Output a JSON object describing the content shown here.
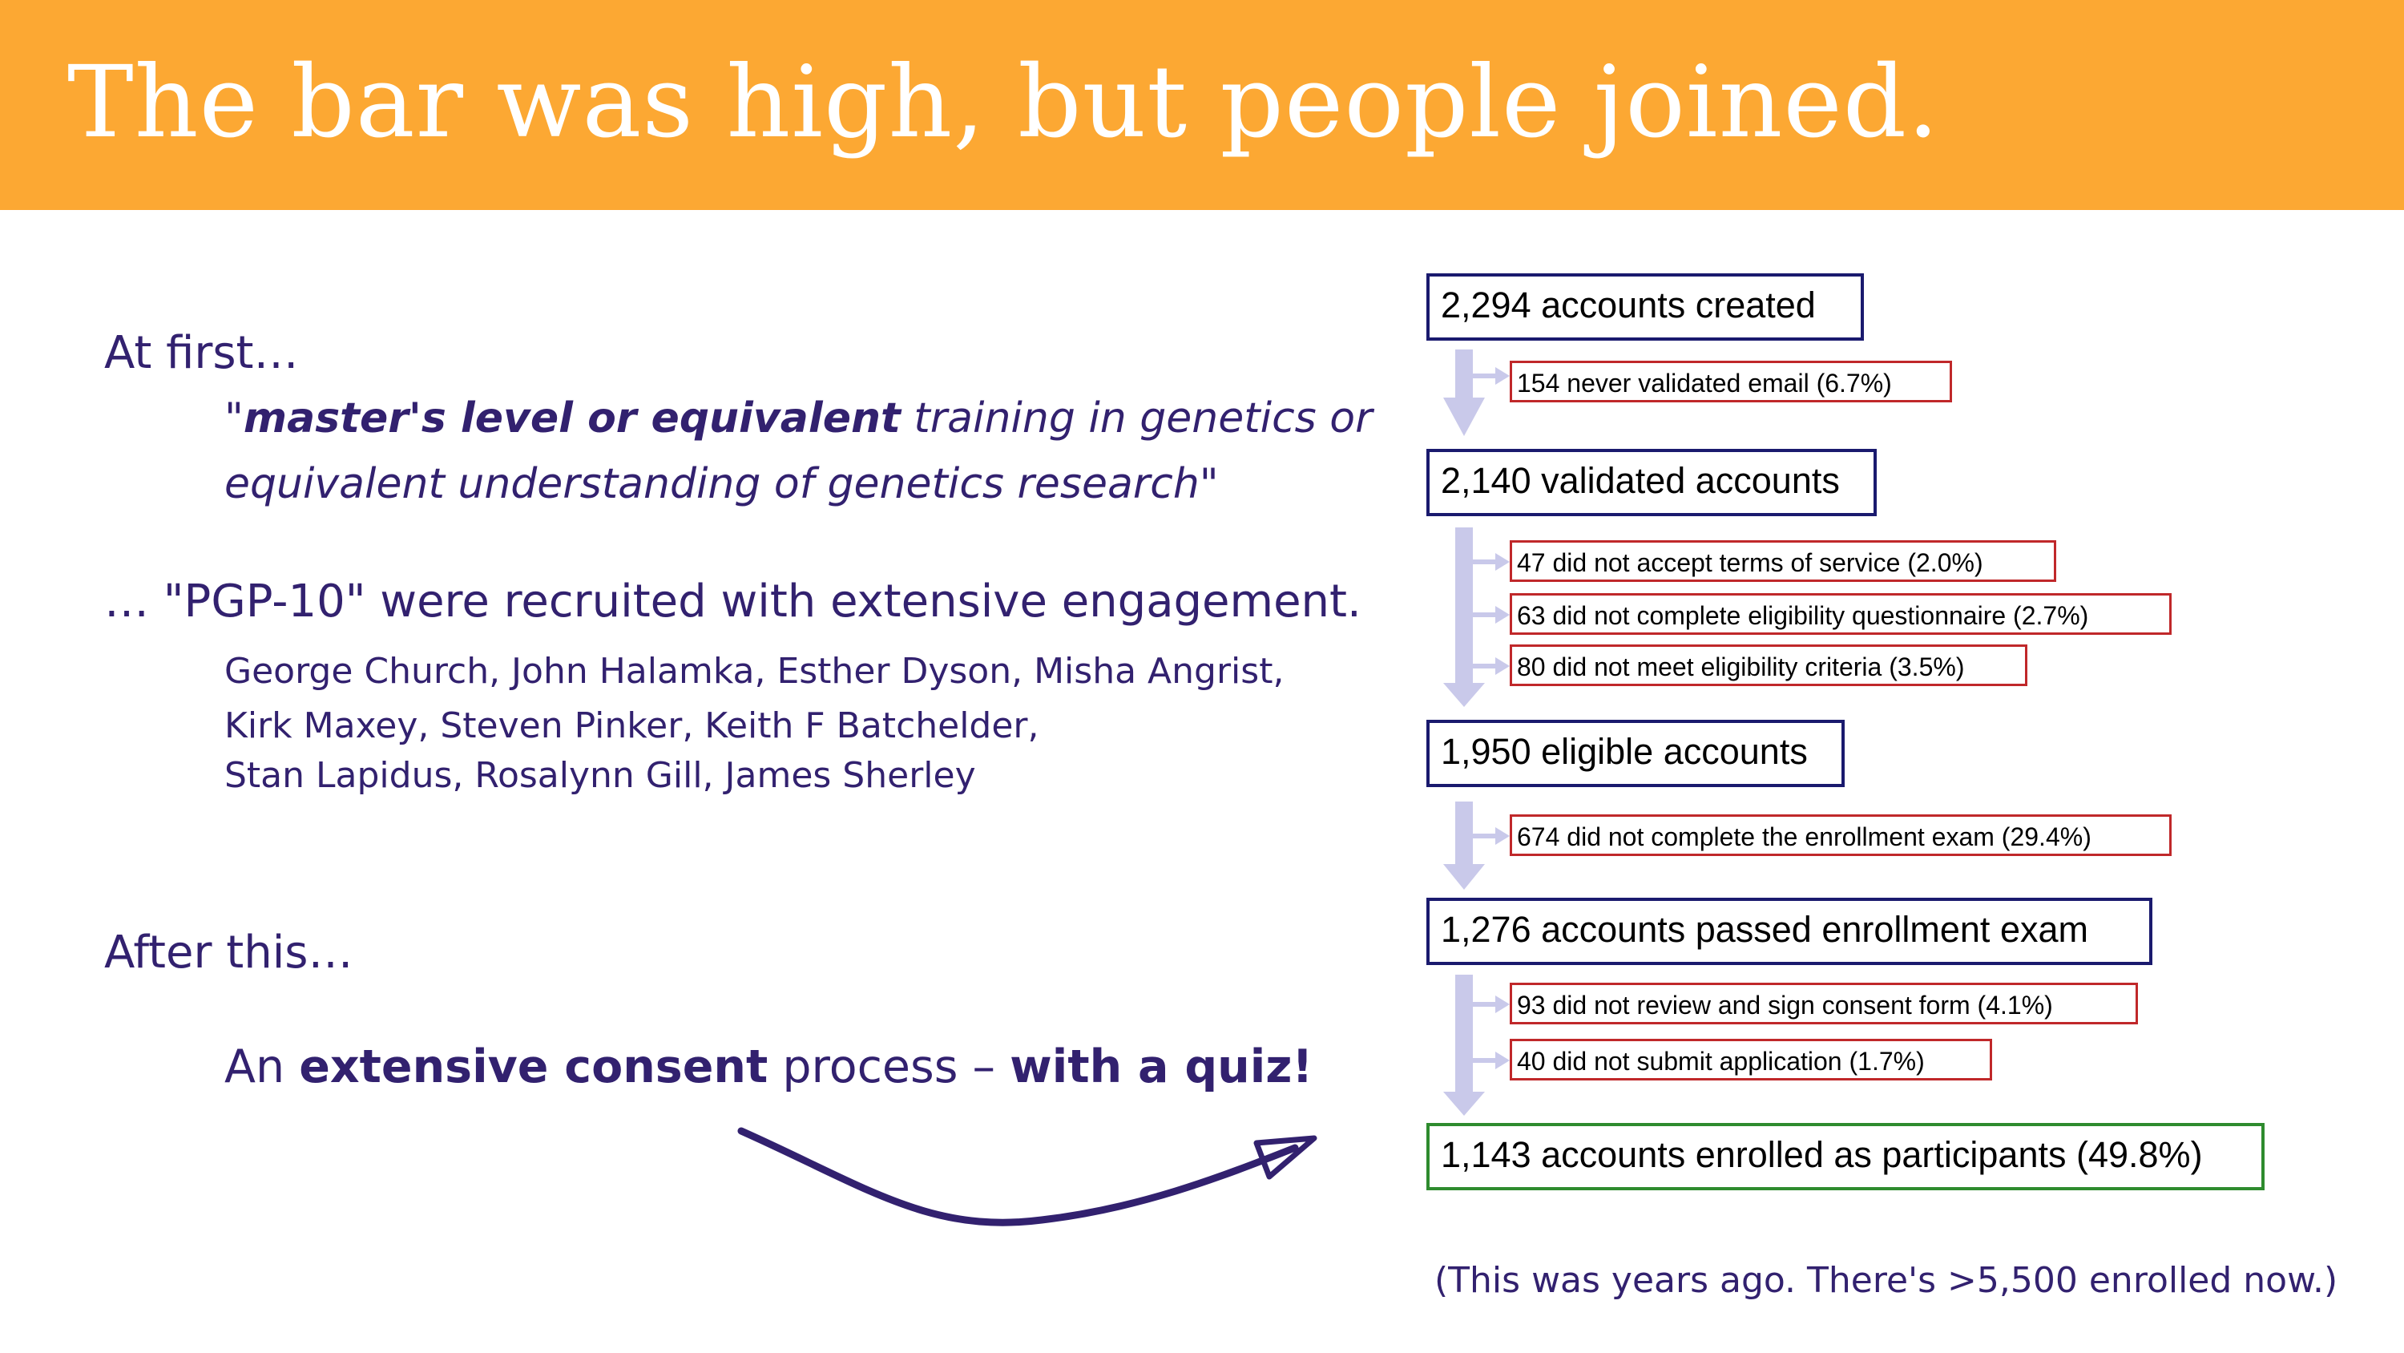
{
  "title": "The bar was high, but people joined.",
  "left": {
    "at_first": "At first…",
    "quote": {
      "open": "\"",
      "bold": "master's level or equivalent",
      "rest1": " training in genetics or",
      "line2": "equivalent understanding of genetics research\""
    },
    "pgp10": "… \"PGP-10\" were recruited with extensive engagement.",
    "names": [
      "George Church, John Halamka, Esther Dyson, Misha Angrist,",
      "Kirk Maxey, Steven Pinker, Keith F Batchelder,",
      "Stan Lapidus, Rosalynn Gill, James Sherley"
    ],
    "after_this": "After this…",
    "consent": {
      "p1": "An ",
      "b1": "extensive consent",
      "p2": " process – ",
      "b2": "with a quiz!"
    }
  },
  "flowchart": {
    "main": [
      "2,294 accounts created",
      "2,140 validated accounts",
      "1,950 eligible accounts",
      "1,276 accounts passed enrollment exam",
      "1,143 accounts enrolled as participants (49.8%)"
    ],
    "exclusions": [
      "154 never validated email (6.7%)",
      "47 did not accept terms of service (2.0%)",
      "63 did not complete eligibility questionnaire (2.7%)",
      "80 did not meet eligibility criteria (3.5%)",
      "674 did not complete the enrollment exam (29.4%)",
      "93 did not review and sign consent form (4.1%)",
      "40 did not submit application (1.7%)"
    ]
  },
  "footnote": "(This was years ago. There's >5,500 enrolled now.)",
  "colors": {
    "title_bar": "#FCA833",
    "text": "#32216F",
    "main_border": "#1a1a6e",
    "exclusion_border": "#c0282a",
    "final_border": "#2e8b2e",
    "flow_arrow": "#c9c9ea"
  }
}
